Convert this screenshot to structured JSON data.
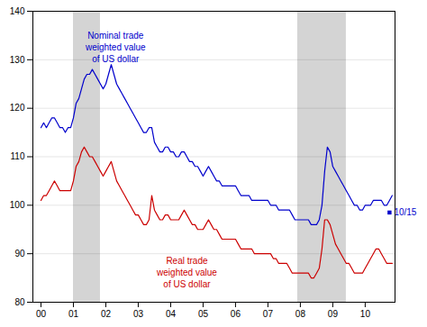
{
  "chart_data": {
    "type": "line",
    "x": [
      2000.0,
      2000.083,
      2000.167,
      2000.25,
      2000.333,
      2000.417,
      2000.5,
      2000.583,
      2000.667,
      2000.75,
      2000.833,
      2000.917,
      2001.0,
      2001.083,
      2001.167,
      2001.25,
      2001.333,
      2001.417,
      2001.5,
      2001.583,
      2001.667,
      2001.75,
      2001.833,
      2001.917,
      2002.0,
      2002.083,
      2002.167,
      2002.25,
      2002.333,
      2002.417,
      2002.5,
      2002.583,
      2002.667,
      2002.75,
      2002.833,
      2002.917,
      2003.0,
      2003.083,
      2003.167,
      2003.25,
      2003.333,
      2003.417,
      2003.5,
      2003.583,
      2003.667,
      2003.75,
      2003.833,
      2003.917,
      2004.0,
      2004.083,
      2004.167,
      2004.25,
      2004.333,
      2004.417,
      2004.5,
      2004.583,
      2004.667,
      2004.75,
      2004.833,
      2004.917,
      2005.0,
      2005.083,
      2005.167,
      2005.25,
      2005.333,
      2005.417,
      2005.5,
      2005.583,
      2005.667,
      2005.75,
      2005.833,
      2005.917,
      2006.0,
      2006.083,
      2006.167,
      2006.25,
      2006.333,
      2006.417,
      2006.5,
      2006.583,
      2006.667,
      2006.75,
      2006.833,
      2006.917,
      2007.0,
      2007.083,
      2007.167,
      2007.25,
      2007.333,
      2007.417,
      2007.5,
      2007.583,
      2007.667,
      2007.75,
      2007.833,
      2007.917,
      2008.0,
      2008.083,
      2008.167,
      2008.25,
      2008.333,
      2008.417,
      2008.5,
      2008.583,
      2008.667,
      2008.75,
      2008.833,
      2008.917,
      2009.0,
      2009.083,
      2009.167,
      2009.25,
      2009.333,
      2009.417,
      2009.5,
      2009.583,
      2009.667,
      2009.75,
      2009.833,
      2009.917,
      2010.0,
      2010.083,
      2010.167,
      2010.25,
      2010.333,
      2010.417,
      2010.5,
      2010.583,
      2010.667,
      2010.75,
      2010.833
    ],
    "series": [
      {
        "name": "Nominal trade\nweighted value\nof US dollar",
        "color": "#0000cc",
        "label_x": 2002.3,
        "label_y": 136,
        "values": [
          116,
          117,
          116,
          117,
          118,
          118,
          117,
          116,
          116,
          115,
          116,
          116,
          118,
          121,
          122,
          124,
          126,
          127,
          127,
          128,
          127,
          126,
          125,
          124,
          125,
          127,
          129,
          127,
          125,
          124,
          123,
          122,
          121,
          120,
          119,
          118,
          117,
          116,
          115,
          115,
          116,
          116,
          113,
          112,
          111,
          111,
          112,
          112,
          111,
          111,
          110,
          110,
          111,
          111,
          110,
          109,
          109,
          108,
          108,
          107,
          106,
          107,
          108,
          107,
          106,
          105,
          105,
          104,
          104,
          104,
          104,
          104,
          104,
          103,
          102,
          102,
          102,
          102,
          101,
          101,
          101,
          101,
          101,
          101,
          101,
          100,
          100,
          100,
          99,
          99,
          99,
          99,
          99,
          98,
          97,
          97,
          97,
          97,
          97,
          97,
          96,
          96,
          96,
          97,
          100,
          107,
          112,
          111,
          108,
          107,
          106,
          105,
          104,
          103,
          102,
          101,
          100,
          100,
          99,
          99,
          100,
          100,
          100,
          101,
          101,
          101,
          101,
          100,
          100,
          101,
          102
        ]
      },
      {
        "name": "Real trade\nweighted value\nof US dollar",
        "color": "#cc0000",
        "label_x": 2004.5,
        "label_y": 83,
        "values": [
          101,
          102,
          102,
          103,
          104,
          105,
          104,
          103,
          103,
          103,
          103,
          103,
          105,
          108,
          109,
          111,
          112,
          111,
          110,
          110,
          109,
          108,
          107,
          106,
          107,
          108,
          109,
          107,
          105,
          104,
          103,
          102,
          101,
          100,
          99,
          98,
          98,
          97,
          96,
          96,
          97,
          102,
          99,
          98,
          97,
          97,
          98,
          98,
          97,
          97,
          97,
          97,
          98,
          99,
          98,
          97,
          96,
          96,
          95,
          95,
          95,
          96,
          97,
          96,
          95,
          95,
          94,
          93,
          93,
          93,
          93,
          93,
          93,
          92,
          91,
          91,
          91,
          91,
          91,
          90,
          90,
          90,
          90,
          90,
          90,
          90,
          89,
          89,
          88,
          88,
          88,
          88,
          87,
          86,
          86,
          86,
          86,
          86,
          86,
          86,
          85,
          85,
          86,
          87,
          91,
          97,
          97,
          96,
          94,
          92,
          91,
          90,
          89,
          88,
          88,
          87,
          86,
          86,
          86,
          86,
          87,
          88,
          89,
          90,
          91,
          91,
          90,
          89,
          88,
          88,
          88
        ]
      }
    ],
    "bands": [
      {
        "x1": 2001.0,
        "x2": 2001.833,
        "color": "#d4d4d4"
      },
      {
        "x1": 2007.917,
        "x2": 2009.417,
        "color": "#d4d4d4"
      }
    ],
    "annotations": [
      {
        "text": "10/15",
        "x": 2010.75,
        "y": 98.5,
        "marker": "square",
        "color": "#0000cc"
      }
    ],
    "xlim": [
      1999.75,
      2010.92
    ],
    "xticks": [
      {
        "value": 2000,
        "label": "00"
      },
      {
        "value": 2001,
        "label": "01"
      },
      {
        "value": 2002,
        "label": "02"
      },
      {
        "value": 2003,
        "label": "03"
      },
      {
        "value": 2004,
        "label": "04"
      },
      {
        "value": 2005,
        "label": "05"
      },
      {
        "value": 2006,
        "label": "06"
      },
      {
        "value": 2007,
        "label": "07"
      },
      {
        "value": 2008,
        "label": "08"
      },
      {
        "value": 2009,
        "label": "09"
      },
      {
        "value": 2010,
        "label": "10"
      }
    ],
    "ylim": [
      80,
      140
    ],
    "yticks": [
      80,
      90,
      100,
      110,
      120,
      130,
      140
    ],
    "grid": true
  }
}
